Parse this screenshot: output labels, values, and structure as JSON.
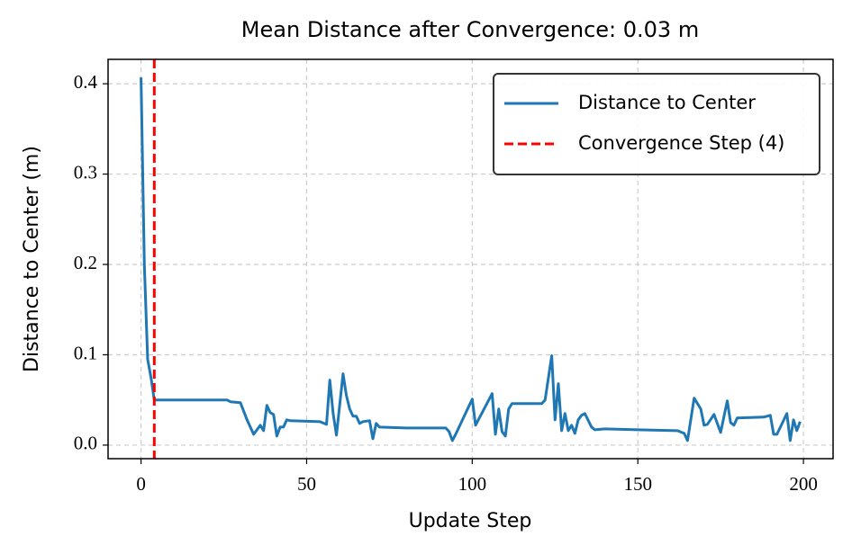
{
  "chart_data": {
    "type": "line",
    "title": "Mean Distance after Convergence: 0.03 m",
    "xlabel": "Update Step",
    "ylabel": "Distance to Center (m)",
    "x": [
      0,
      1,
      2,
      3,
      4,
      5,
      26,
      27,
      30,
      32,
      34,
      36,
      37,
      38,
      39,
      40,
      41,
      42,
      43,
      44,
      45,
      54,
      56,
      57,
      58,
      59,
      60,
      61,
      62,
      63,
      64,
      65,
      66,
      67,
      69,
      70,
      71,
      72,
      80,
      92,
      93,
      94,
      95,
      100,
      101,
      106,
      107,
      108,
      109,
      110,
      111,
      112,
      121,
      122,
      124,
      125,
      126,
      127,
      128,
      129,
      130,
      131,
      132,
      133,
      134,
      136,
      137,
      140,
      150,
      162,
      164,
      165,
      167,
      169,
      170,
      171,
      173,
      175,
      177,
      178,
      179,
      180,
      188,
      190,
      191,
      192,
      195,
      196,
      197,
      198,
      199
    ],
    "series": [
      {
        "name": "Distance to Center",
        "color": "#1f77b4",
        "values": [
          0.407,
          0.2,
          0.095,
          0.075,
          0.05,
          0.05,
          0.05,
          0.048,
          0.047,
          0.028,
          0.012,
          0.022,
          0.016,
          0.044,
          0.036,
          0.034,
          0.01,
          0.02,
          0.02,
          0.028,
          0.027,
          0.026,
          0.023,
          0.072,
          0.035,
          0.011,
          0.045,
          0.079,
          0.055,
          0.04,
          0.032,
          0.032,
          0.024,
          0.026,
          0.027,
          0.007,
          0.024,
          0.02,
          0.019,
          0.019,
          0.015,
          0.005,
          0.012,
          0.051,
          0.022,
          0.057,
          0.012,
          0.04,
          0.015,
          0.01,
          0.04,
          0.046,
          0.046,
          0.05,
          0.099,
          0.028,
          0.068,
          0.016,
          0.035,
          0.016,
          0.022,
          0.013,
          0.028,
          0.033,
          0.035,
          0.02,
          0.017,
          0.018,
          0.017,
          0.016,
          0.013,
          0.005,
          0.052,
          0.04,
          0.022,
          0.023,
          0.034,
          0.014,
          0.049,
          0.025,
          0.022,
          0.03,
          0.031,
          0.033,
          0.012,
          0.012,
          0.035,
          0.005,
          0.028,
          0.016,
          0.026
        ]
      }
    ],
    "vlines": [
      {
        "name": "Convergence Step (4)",
        "color": "#ff0000",
        "x": 4
      }
    ],
    "xlim": [
      -9.95,
      208.95
    ],
    "ylim": [
      -0.015,
      0.427
    ],
    "xticks": [
      0,
      50,
      100,
      150,
      200
    ],
    "yticks": [
      {
        "value": 0,
        "label": "0.0"
      },
      0.1,
      0.2,
      0.3,
      0.4
    ],
    "grid": true,
    "legend": "upper right"
  }
}
